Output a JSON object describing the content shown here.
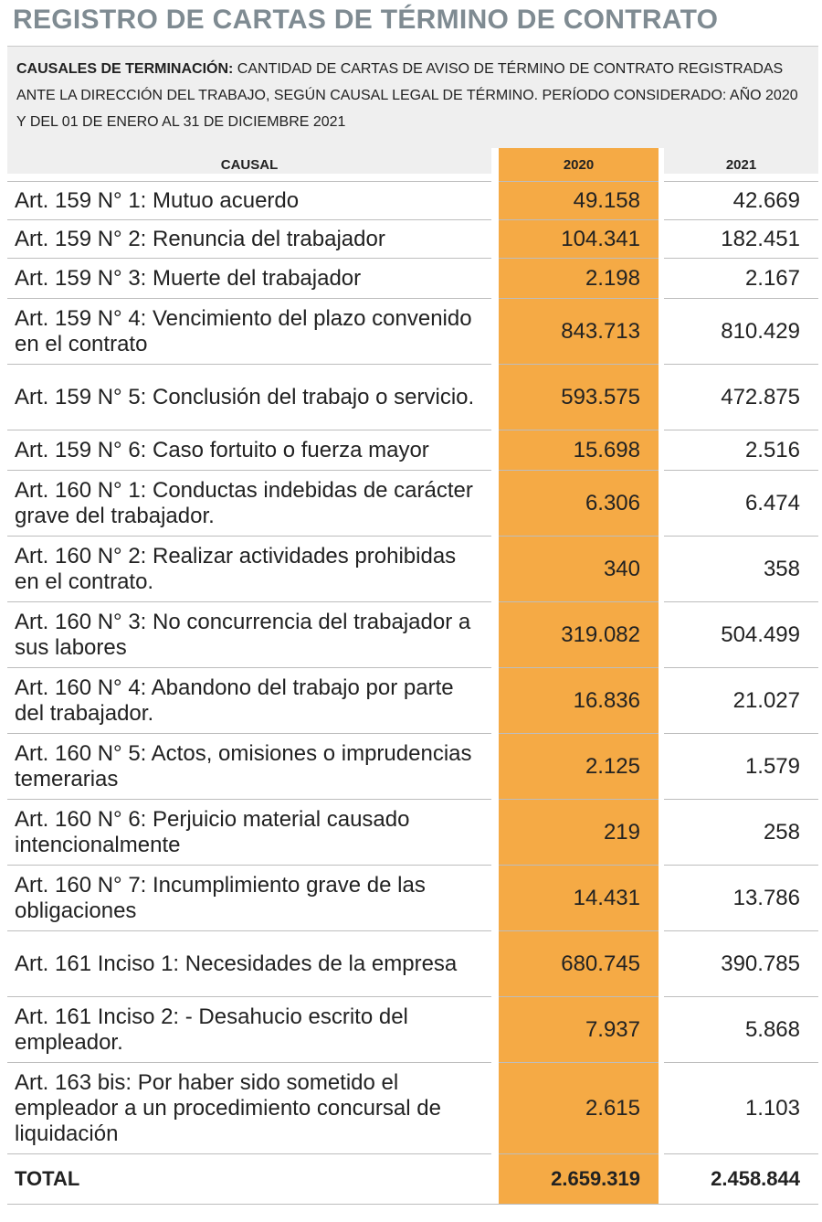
{
  "title": "REGISTRO DE CARTAS DE TÉRMINO DE CONTRATO",
  "subtitle": {
    "lead": "CAUSALES DE TERMINACIÓN:",
    "text": " CANTIDAD DE CARTAS DE AVISO DE TÉRMINO DE CONTRATO REGISTRADAS ANTE LA DIRECCIÓN DEL TRABAJO, SEGÚN CAUSAL LEGAL DE TÉRMINO. PERÍODO CONSIDERADO: AÑO 2020 Y DEL 01 DE ENERO AL 31 DE DICIEMBRE 2021"
  },
  "headers": {
    "causal": "CAUSAL",
    "y2020": "2020",
    "y2021": "2021"
  },
  "highlight_color": "#f5aa45",
  "rows": [
    {
      "causal": "Art. 159 N° 1: Mutuo acuerdo",
      "v2020": "49.158",
      "v2021": "42.669"
    },
    {
      "causal": "Art. 159 N° 2: Renuncia del trabajador",
      "v2020": "104.341",
      "v2021": "182.451"
    },
    {
      "causal": "Art. 159 N° 3: Muerte del trabajador",
      "v2020": "2.198",
      "v2021": "2.167"
    },
    {
      "causal": "Art. 159 N° 4: Vencimiento del plazo convenido en el contrato",
      "v2020": "843.713",
      "v2021": "810.429"
    },
    {
      "causal": "Art. 159 N° 5: Conclusión del trabajo o servicio.",
      "v2020": "593.575",
      "v2021": "472.875"
    },
    {
      "causal": "Art. 159 N° 6: Caso fortuito o fuerza mayor",
      "v2020": "15.698",
      "v2021": "2.516"
    },
    {
      "causal": "Art. 160 N° 1: Conductas indebidas de carácter grave del trabajador.",
      "v2020": "6.306",
      "v2021": "6.474"
    },
    {
      "causal": "Art. 160 N° 2: Realizar actividades prohibidas en el contrato.",
      "v2020": "340",
      "v2021": "358"
    },
    {
      "causal": "Art. 160 N° 3: No concurrencia del trabajador a sus labores",
      "v2020": "319.082",
      "v2021": "504.499"
    },
    {
      "causal": "Art. 160 N° 4: Abandono del trabajo por parte del trabajador.",
      "v2020": "16.836",
      "v2021": "21.027"
    },
    {
      "causal": "Art. 160 N° 5: Actos, omisiones o imprudencias temerarias",
      "v2020": "2.125",
      "v2021": "1.579"
    },
    {
      "causal": "Art. 160 N° 6:  Perjuicio material causado intencionalmente",
      "v2020": "219",
      "v2021": "258"
    },
    {
      "causal": "Art. 160 N° 7: Incumplimiento grave de las obligaciones",
      "v2020": "14.431",
      "v2021": "13.786"
    },
    {
      "causal": "Art. 161 Inciso 1:  Necesidades de la empresa",
      "v2020": "680.745",
      "v2021": "390.785"
    },
    {
      "causal": "Art. 161 Inciso 2: - Desahucio escrito del empleador.",
      "v2020": "7.937",
      "v2021": "5.868"
    },
    {
      "causal": "Art. 163 bis: Por haber sido sometido el empleador a un procedimiento concursal de liquidación",
      "v2020": "2.615",
      "v2021": "1.103"
    }
  ],
  "total": {
    "label": "TOTAL",
    "v2020": "2.659.319",
    "v2021": "2.458.844"
  }
}
